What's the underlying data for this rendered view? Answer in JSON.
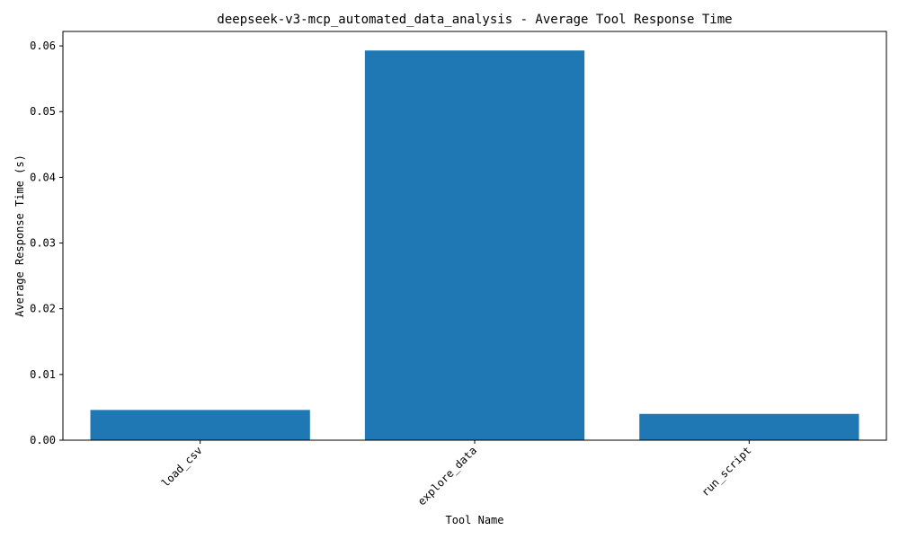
{
  "chart_data": {
    "type": "bar",
    "title": "deepseek-v3-mcp_automated_data_analysis - Average Tool Response Time",
    "xlabel": "Tool Name",
    "ylabel": "Average Response Time (s)",
    "categories": [
      "load_csv",
      "explore_data",
      "run_script"
    ],
    "values": [
      0.0046,
      0.0593,
      0.004
    ],
    "ylim": [
      0,
      0.0622
    ],
    "yticks": [
      0.0,
      0.01,
      0.02,
      0.03,
      0.04,
      0.05,
      0.06
    ],
    "ytick_labels": [
      "0.00",
      "0.01",
      "0.02",
      "0.03",
      "0.04",
      "0.05",
      "0.06"
    ],
    "bar_color": "#1f77b4",
    "grid": false,
    "legend": "none"
  }
}
